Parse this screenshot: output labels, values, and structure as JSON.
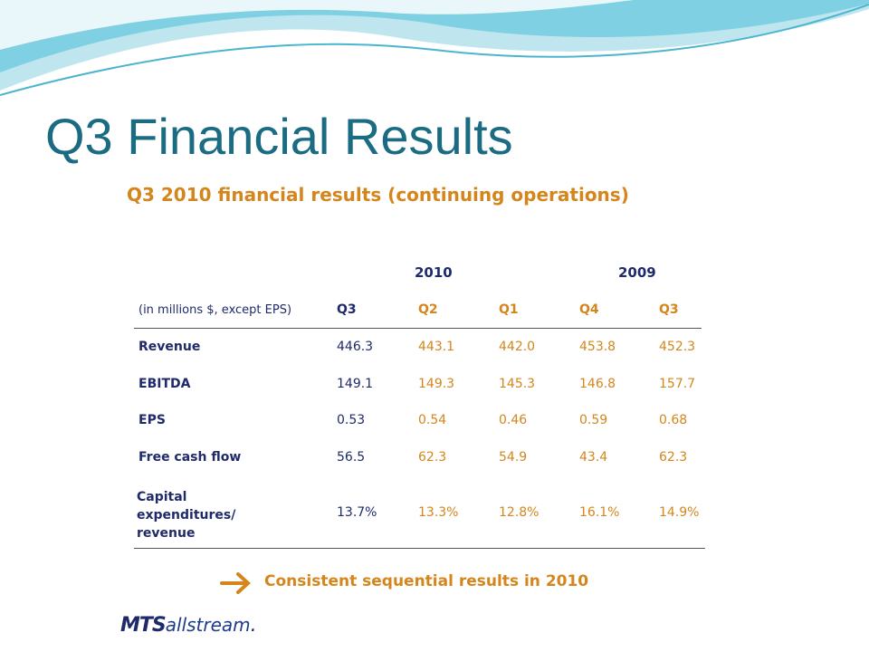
{
  "title": "Q3 Financial Results",
  "panel": {
    "subtitle": "Q3 2010 financial results (continuing operations)",
    "table": {
      "years": [
        "2010",
        "2009"
      ],
      "header": [
        "(in millions $, except EPS)",
        "Q3",
        "Q2",
        "Q1",
        "Q4",
        "Q3"
      ],
      "rows": [
        [
          "Revenue",
          "446.3",
          "443.1",
          "442.0",
          "453.8",
          "452.3"
        ],
        [
          "EBITDA",
          "149.1",
          "149.3",
          "145.3",
          "146.8",
          "157.7"
        ],
        [
          "EPS",
          "0.53",
          "0.54",
          "0.46",
          "0.59",
          "0.68"
        ],
        [
          "Free cash flow",
          "56.5",
          "62.3",
          "54.9",
          "43.4",
          "62.3"
        ],
        [
          "Capital expenditures/ revenue",
          "13.7%",
          "13.3%",
          "12.8%",
          "16.1%",
          "14.9%"
        ]
      ]
    },
    "conclusion": "Consistent sequential results in 2010",
    "logo": {
      "brand": "MTS",
      "name": "allstream",
      "dot": "."
    }
  }
}
